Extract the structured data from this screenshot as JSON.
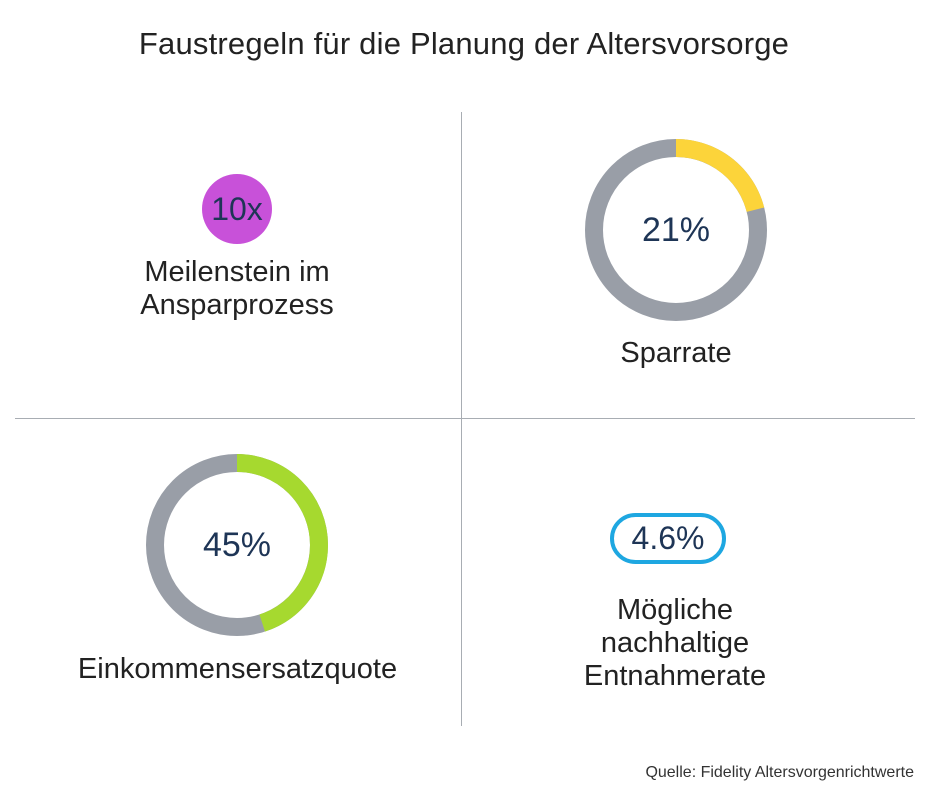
{
  "title": "Faustregeln für die Planung der Altersvorsorge",
  "source": "Quelle: Fidelity Altersvorgenrichtwerte",
  "colors": {
    "track_gray": "#999ea7",
    "yellow": "#fcd43a",
    "green": "#a6d92f",
    "purple": "#c851d9",
    "blue": "#1ea7e1",
    "navy_text": "#1e3556"
  },
  "chart_data": [
    {
      "type": "badge",
      "value_label": "10x",
      "label_lines": [
        "Meilenstein im",
        "Ansparprozess"
      ]
    },
    {
      "type": "pie",
      "value": 21,
      "value_label": "21%",
      "label_lines": [
        "Sparrate"
      ],
      "color": "#fcd43a"
    },
    {
      "type": "pie",
      "value": 45,
      "value_label": "45%",
      "label_lines": [
        "Einkommensersatzquote"
      ],
      "color": "#a6d92f"
    },
    {
      "type": "badge",
      "value_label": "4.6%",
      "label_lines": [
        "Mögliche",
        "nachhaltige",
        "Entnahmerate"
      ]
    }
  ]
}
